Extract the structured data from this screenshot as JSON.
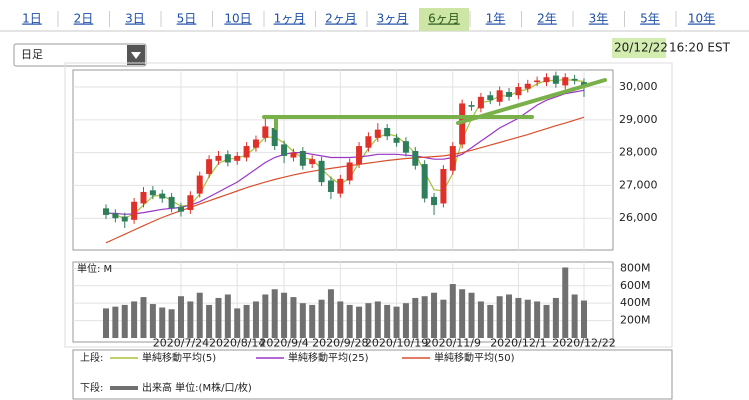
{
  "tabs": [
    "1日",
    "2日",
    "3日",
    "5日",
    "10日",
    "1ヶ月",
    "2ヶ月",
    "3ヶ月",
    "6ヶ月",
    "1年",
    "2年",
    "3年",
    "5年",
    "10年"
  ],
  "selected_tab": 8,
  "dropdown": "日足",
  "timestamp": {
    "date": "20/12/22",
    "time": "16:20 EST"
  },
  "chart_data": {
    "type": "candlestick",
    "categories": [
      null,
      null,
      null,
      null,
      null,
      null,
      null,
      null,
      "2020/7/24",
      null,
      null,
      null,
      null,
      null,
      "2020/8/14",
      null,
      null,
      null,
      null,
      "2020/9/4",
      null,
      null,
      null,
      null,
      null,
      "2020/9/28",
      null,
      null,
      null,
      null,
      null,
      "2020/10/19",
      null,
      null,
      null,
      null,
      null,
      "2020/11/9",
      null,
      null,
      null,
      null,
      null,
      null,
      "2020/12/1",
      null,
      null,
      null,
      null,
      null,
      null,
      "2020/12/22"
    ],
    "open": [
      26300,
      26150,
      26050,
      25950,
      26450,
      26850,
      26750,
      26650,
      26350,
      26250,
      26750,
      27350,
      27750,
      27950,
      27750,
      27850,
      28150,
      28450,
      28750,
      28250,
      27850,
      28050,
      27650,
      27750,
      27150,
      26750,
      27150,
      27650,
      28150,
      28450,
      28750,
      28450,
      28350,
      28050,
      27650,
      26650,
      26450,
      27450,
      28250,
      29450,
      29350,
      29750,
      29550,
      29850,
      29750,
      29950,
      30150,
      30150,
      30350,
      30050,
      30250,
      30150
    ],
    "high": [
      26420,
      26270,
      26170,
      26620,
      26950,
      26980,
      26870,
      26770,
      26470,
      26820,
      27420,
      27920,
      28050,
      28070,
      28020,
      28320,
      28520,
      29050,
      28870,
      28370,
      28120,
      28170,
      27920,
      27870,
      27270,
      27320,
      27820,
      28320,
      28620,
      28900,
      28870,
      28570,
      28470,
      28170,
      27770,
      26770,
      27620,
      28320,
      29620,
      29570,
      29820,
      29870,
      30020,
      29970,
      30120,
      30220,
      30320,
      30420,
      30470,
      30420,
      30370,
      30270
    ],
    "low": [
      25970,
      25870,
      25700,
      25830,
      26330,
      26580,
      26470,
      26180,
      26050,
      26130,
      26630,
      27230,
      27630,
      27580,
      27630,
      27730,
      28030,
      28330,
      28080,
      27680,
      27730,
      27480,
      27530,
      26980,
      26580,
      26630,
      27030,
      27530,
      28030,
      28330,
      28380,
      28180,
      27880,
      27480,
      26480,
      26100,
      26330,
      27330,
      28130,
      29280,
      29230,
      29480,
      29430,
      29580,
      29630,
      29830,
      30030,
      30030,
      29980,
      29930,
      30080,
      29700
    ],
    "close": [
      26100,
      26000,
      25900,
      26500,
      26800,
      26700,
      26600,
      26300,
      26200,
      26700,
      27300,
      27800,
      27900,
      27700,
      27900,
      28200,
      28400,
      28800,
      28200,
      27900,
      28000,
      27600,
      27800,
      27100,
      26800,
      27200,
      27700,
      28200,
      28500,
      28700,
      28500,
      28300,
      28000,
      27600,
      26600,
      26400,
      27500,
      28200,
      29500,
      29400,
      29700,
      29600,
      29900,
      29700,
      30000,
      30100,
      30200,
      30300,
      30100,
      30300,
      30200,
      30000
    ],
    "up_color": "#e0302a",
    "down_color": "#2e7d5b",
    "ylim": [
      25030,
      30520
    ],
    "yticks": [
      {
        "value": 26000,
        "label": "26,000"
      },
      {
        "value": 27000,
        "label": "27,000"
      },
      {
        "value": 28000,
        "label": "28,000"
      },
      {
        "value": 29000,
        "label": "29,000"
      },
      {
        "value": 30000,
        "label": "30,000"
      }
    ],
    "grid": true,
    "series": [
      {
        "name": "単純移動平均(5)",
        "color": "#a8c23a",
        "values": [
          26200,
          26100,
          26000,
          26130,
          26400,
          26670,
          26700,
          26530,
          26370,
          26400,
          26730,
          27270,
          27670,
          27800,
          27830,
          27930,
          28170,
          28470,
          28470,
          28300,
          28030,
          27830,
          27800,
          27500,
          27230,
          27030,
          27230,
          27700,
          28130,
          28470,
          28570,
          28500,
          28270,
          27970,
          27400,
          26870,
          26830,
          27370,
          28400,
          29030,
          29530,
          29570,
          29730,
          29730,
          29870,
          29930,
          30100,
          30200,
          30200,
          30230,
          30200,
          30170
        ]
      },
      {
        "name": "単純移動平均(25)",
        "color": "#9b35c8",
        "values": [
          26150,
          26150,
          26120,
          26130,
          26170,
          26220,
          26270,
          26300,
          26330,
          26400,
          26500,
          26650,
          26800,
          26950,
          27100,
          27300,
          27500,
          27700,
          27850,
          27950,
          28000,
          28000,
          27950,
          27900,
          27850,
          27850,
          27850,
          27870,
          27900,
          27950,
          27950,
          27950,
          27920,
          27900,
          27850,
          27800,
          27800,
          27850,
          27950,
          28150,
          28350,
          28550,
          28750,
          28900,
          29050,
          29250,
          29450,
          29600,
          29700,
          29800,
          29850,
          29900
        ]
      },
      {
        "name": "単純移動平均(50)",
        "color": "#d9502e",
        "values": [
          25250,
          25380,
          25510,
          25640,
          25770,
          25900,
          26020,
          26130,
          26230,
          26330,
          26430,
          26530,
          26630,
          26730,
          26830,
          26930,
          27020,
          27100,
          27180,
          27250,
          27320,
          27380,
          27430,
          27480,
          27520,
          27560,
          27600,
          27640,
          27680,
          27720,
          27760,
          27790,
          27820,
          27840,
          27860,
          27880,
          27900,
          27940,
          28000,
          28070,
          28150,
          28230,
          28310,
          28390,
          28470,
          28550,
          28640,
          28730,
          28820,
          28900,
          28990,
          29080
        ]
      }
    ],
    "volume": {
      "unit_label": "単位: M",
      "color": "#707070",
      "values": [
        340,
        360,
        380,
        420,
        470,
        390,
        350,
        330,
        480,
        420,
        520,
        380,
        460,
        500,
        340,
        380,
        420,
        500,
        560,
        520,
        470,
        400,
        380,
        440,
        560,
        420,
        380,
        360,
        400,
        420,
        380,
        360,
        400,
        460,
        480,
        520,
        440,
        620,
        560,
        520,
        420,
        380,
        480,
        500,
        460,
        440,
        420,
        380,
        460,
        810,
        500,
        430
      ],
      "ylim": [
        0,
        850
      ],
      "yticks": [
        {
          "value": 200,
          "label": "200M"
        },
        {
          "value": 400,
          "label": "400M"
        },
        {
          "value": 600,
          "label": "600M"
        },
        {
          "value": 800,
          "label": "800M"
        }
      ]
    },
    "legend": {
      "upper": "上段:",
      "lower": "下段:",
      "volume_name": "出来高 単位:(M株/口/枚)"
    }
  }
}
